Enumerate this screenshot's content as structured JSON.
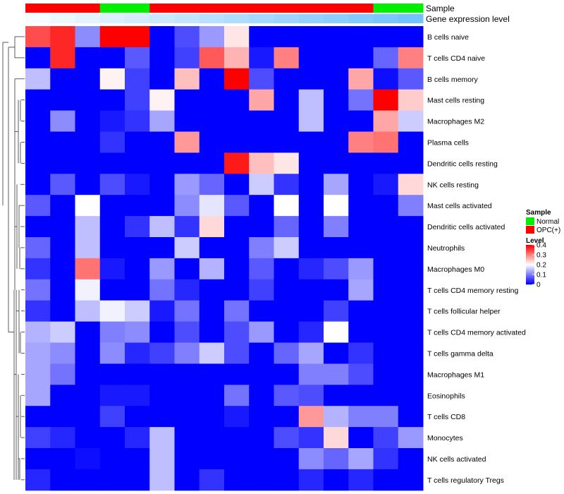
{
  "chart_data": {
    "type": "heatmap",
    "title": "",
    "xlabel": "",
    "ylabel": "",
    "annotation_tracks": [
      {
        "name": "Sample",
        "label": "Sample",
        "values": [
          "OPC(+)",
          "OPC(+)",
          "OPC(+)",
          "Normal",
          "Normal",
          "OPC(+)",
          "OPC(+)",
          "OPC(+)",
          "OPC(+)",
          "OPC(+)",
          "OPC(+)",
          "OPC(+)",
          "OPC(+)",
          "OPC(+)",
          "Normal",
          "Normal"
        ]
      },
      {
        "name": "Gene expression level",
        "label": "Gene expression level",
        "values": [
          0.05,
          0.1,
          0.15,
          0.2,
          0.25,
          0.3,
          0.35,
          0.4,
          0.45,
          0.5,
          0.55,
          0.6,
          0.65,
          0.7,
          0.75,
          0.8
        ]
      }
    ],
    "sample_colors": {
      "Normal": "#00ee00",
      "OPC(+)": "#ff0000"
    },
    "expression_colors": {
      "low": "#ffffff",
      "high": "#4db3ff"
    },
    "rows": [
      "B cells naive",
      "T cells CD4 naive",
      "B cells memory",
      "Mast cells resting",
      "Macrophages M2",
      "Plasma cells",
      "Dendritic cells resting",
      "NK cells resting",
      "Mast cells activated",
      "Dendritic cells activated",
      "Neutrophils",
      "Macrophages M0",
      "T cells CD4 memory resting",
      "T cells follicular helper",
      "T cells CD4 memory activated",
      "T cells gamma delta",
      "Macrophages M1",
      "Eosinophils",
      "T cells CD8",
      "Monocytes",
      "NK cells activated",
      "T cells regulatory  Tregs"
    ],
    "values": [
      [
        0.34,
        0.37,
        0.11,
        0.4,
        0.4,
        0.0,
        0.06,
        0.12,
        0.22,
        0.0,
        0.0,
        0.0,
        0.0,
        0.0,
        0.0,
        0.0
      ],
      [
        0.0,
        0.37,
        0.0,
        0.0,
        0.07,
        0.0,
        0.05,
        0.33,
        0.26,
        0.02,
        0.3,
        0.0,
        0.0,
        0.0,
        0.08,
        0.3
      ],
      [
        0.15,
        0.0,
        0.0,
        0.21,
        0.05,
        0.0,
        0.25,
        0.0,
        0.4,
        0.06,
        0.0,
        0.0,
        0.0,
        0.27,
        0.01,
        0.07
      ],
      [
        0.0,
        0.0,
        0.0,
        0.0,
        0.05,
        0.21,
        0.0,
        0.0,
        0.0,
        0.27,
        0.0,
        0.15,
        0.0,
        0.09,
        0.4,
        0.24
      ],
      [
        0.0,
        0.11,
        0.0,
        0.02,
        0.04,
        0.13,
        0.0,
        0.0,
        0.0,
        0.0,
        0.0,
        0.15,
        0.0,
        0.0,
        0.27,
        0.16
      ],
      [
        0.0,
        0.0,
        0.0,
        0.04,
        0.0,
        0.0,
        0.28,
        0.0,
        0.0,
        0.0,
        0.0,
        0.0,
        0.0,
        0.3,
        0.31,
        0.0
      ],
      [
        0.0,
        0.0,
        0.0,
        0.0,
        0.0,
        0.0,
        0.0,
        0.0,
        0.38,
        0.25,
        0.22,
        0.0,
        0.0,
        0.0,
        0.0,
        0.0
      ],
      [
        0.0,
        0.07,
        0.0,
        0.06,
        0.02,
        0.0,
        0.12,
        0.08,
        0.0,
        0.16,
        0.04,
        0.0,
        0.13,
        0.0,
        0.02,
        0.23
      ],
      [
        0.07,
        0.0,
        0.2,
        0.0,
        0.0,
        0.0,
        0.11,
        0.18,
        0.07,
        0.0,
        0.2,
        0.0,
        0.2,
        0.0,
        0.0,
        0.1
      ],
      [
        0.0,
        0.0,
        0.15,
        0.0,
        0.04,
        0.15,
        0.04,
        0.23,
        0.0,
        0.0,
        0.08,
        0.0,
        0.1,
        0.0,
        0.0,
        0.0
      ],
      [
        0.08,
        0.0,
        0.15,
        0.0,
        0.0,
        0.0,
        0.16,
        0.0,
        0.0,
        0.1,
        0.16,
        0.0,
        0.0,
        0.0,
        0.0,
        0.0
      ],
      [
        0.04,
        0.0,
        0.31,
        0.02,
        0.0,
        0.12,
        0.0,
        0.14,
        0.0,
        0.07,
        0.0,
        0.03,
        0.06,
        0.12,
        0.0,
        0.0
      ],
      [
        0.09,
        0.0,
        0.19,
        0.0,
        0.0,
        0.09,
        0.03,
        0.0,
        0.0,
        0.05,
        0.0,
        0.0,
        0.0,
        0.13,
        0.0,
        0.0
      ],
      [
        0.04,
        0.0,
        0.15,
        0.19,
        0.16,
        0.02,
        0.09,
        0.0,
        0.09,
        0.0,
        0.0,
        0.0,
        0.05,
        0.0,
        0.0,
        0.0
      ],
      [
        0.14,
        0.16,
        0.0,
        0.1,
        0.11,
        0.0,
        0.06,
        0.0,
        0.06,
        0.12,
        0.0,
        0.03,
        0.2,
        0.0,
        0.0,
        0.0
      ],
      [
        0.13,
        0.11,
        0.0,
        0.11,
        0.03,
        0.05,
        0.1,
        0.16,
        0.06,
        0.0,
        0.08,
        0.13,
        0.0,
        0.04,
        0.0,
        0.0
      ],
      [
        0.13,
        0.09,
        0.0,
        0.0,
        0.0,
        0.0,
        0.0,
        0.0,
        0.0,
        0.0,
        0.0,
        0.1,
        0.1,
        0.06,
        0.0,
        0.0
      ],
      [
        0.13,
        0.0,
        0.0,
        0.02,
        0.02,
        0.0,
        0.0,
        0.0,
        0.09,
        0.0,
        0.07,
        0.06,
        0.0,
        0.0,
        0.0,
        0.0
      ],
      [
        0.0,
        0.0,
        0.0,
        0.05,
        0.0,
        0.0,
        0.0,
        0.0,
        0.02,
        0.0,
        0.0,
        0.28,
        0.14,
        0.1,
        0.1,
        0.0
      ],
      [
        0.05,
        0.03,
        0.0,
        0.0,
        0.03,
        0.15,
        0.0,
        0.0,
        0.0,
        0.0,
        0.06,
        0.04,
        0.23,
        0.0,
        0.05,
        0.12
      ],
      [
        0.0,
        0.0,
        0.01,
        0.0,
        0.0,
        0.15,
        0.0,
        0.0,
        0.0,
        0.0,
        0.0,
        0.11,
        0.08,
        0.13,
        0.04,
        0.0
      ],
      [
        0.03,
        0.0,
        0.0,
        0.0,
        0.0,
        0.15,
        0.0,
        0.04,
        0.0,
        0.0,
        0.0,
        0.03,
        0.0,
        0.03,
        0.0,
        0.0
      ]
    ],
    "color_scale": {
      "min": 0,
      "max": 0.4,
      "low": "#0000ff",
      "mid": "#ffffff",
      "high": "#ff0000"
    },
    "legend": {
      "position": "right",
      "sample_title": "Sample",
      "sample_items": [
        "Normal",
        "OPC(+)"
      ],
      "level_title": "Level",
      "level_ticks": [
        0.4,
        0.3,
        0.2,
        0.1,
        0
      ]
    },
    "row_dendrogram": true
  }
}
